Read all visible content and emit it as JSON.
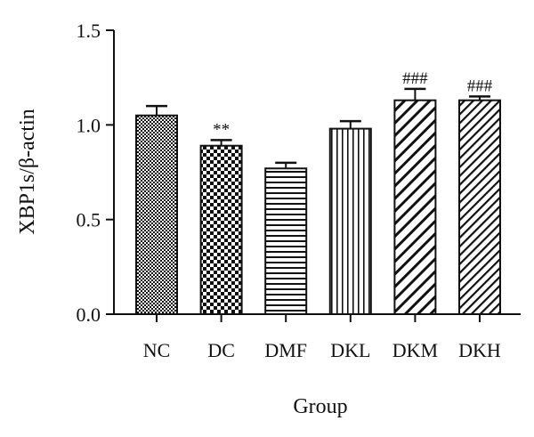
{
  "chart_data": {
    "type": "bar",
    "title": "",
    "xlabel": "Group",
    "ylabel": "XBP1s/β-actin",
    "ylim": [
      0,
      1.5
    ],
    "yticks": [
      0.0,
      0.5,
      1.0,
      1.5
    ],
    "ytick_labels": [
      "0.0",
      "0.5",
      "1.0",
      "1.5"
    ],
    "categories": [
      "NC",
      "DC",
      "DMF",
      "DKL",
      "DKM",
      "DKH"
    ],
    "values": [
      1.05,
      0.89,
      0.77,
      0.98,
      1.13,
      1.13
    ],
    "errors": [
      0.05,
      0.03,
      0.03,
      0.04,
      0.06,
      0.02
    ],
    "annotations": [
      "",
      "**",
      "",
      "",
      "###",
      "###"
    ],
    "fill_patterns": [
      "checker-fine",
      "checker-coarse",
      "horizontal-lines",
      "vertical-lines",
      "diagonal-lines",
      "diagonal-lines-dense"
    ],
    "colors": {
      "ink": "#111111",
      "background": "#ffffff"
    },
    "grid": false,
    "legend": "none"
  }
}
